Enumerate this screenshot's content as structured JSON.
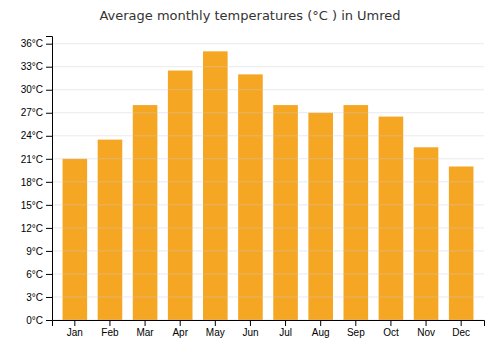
{
  "chart_data": {
    "type": "bar",
    "title": "Average monthly temperatures (°C ) in Umred",
    "categories": [
      "Jan",
      "Feb",
      "Mar",
      "Apr",
      "May",
      "Jun",
      "Jul",
      "Aug",
      "Sep",
      "Oct",
      "Nov",
      "Dec"
    ],
    "values": [
      21,
      23.5,
      28,
      32.5,
      35,
      32,
      28,
      27,
      28,
      26.5,
      22.5,
      20
    ],
    "color": "#F5A623",
    "ylim": [
      0,
      37
    ],
    "yticks": [
      {
        "value": 0,
        "label": "0°C"
      },
      {
        "value": 3,
        "label": "3°C"
      },
      {
        "value": 6,
        "label": "6°C"
      },
      {
        "value": 9,
        "label": "9°C"
      },
      {
        "value": 12,
        "label": "12°C"
      },
      {
        "value": 15,
        "label": "15°C"
      },
      {
        "value": 18,
        "label": "18°C"
      },
      {
        "value": 21,
        "label": "21°C"
      },
      {
        "value": 24,
        "label": "24°C"
      },
      {
        "value": 27,
        "label": "27°C"
      },
      {
        "value": 30,
        "label": "30°C"
      },
      {
        "value": 33,
        "label": "33°C"
      },
      {
        "value": 36,
        "label": "36°C"
      }
    ],
    "grid": true
  }
}
